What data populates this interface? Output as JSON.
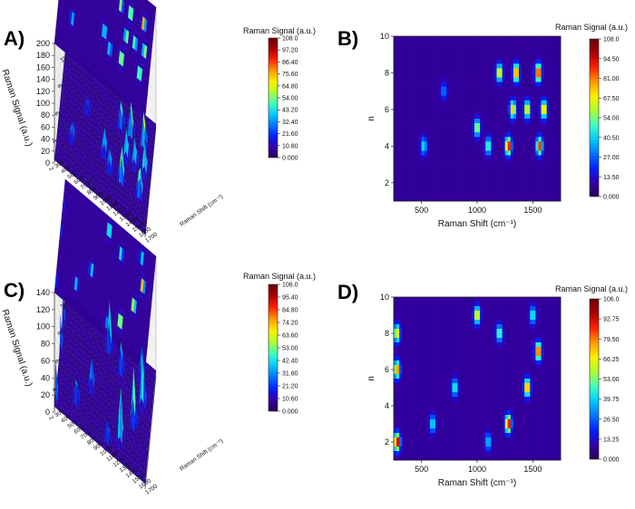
{
  "figure": {
    "palette": [
      "#2a0055",
      "#3300aa",
      "#0022ff",
      "#0077ff",
      "#00ccff",
      "#44ffbb",
      "#aaff33",
      "#ffee00",
      "#ff9900",
      "#ff2200",
      "#aa0000",
      "#6a0000"
    ]
  },
  "chart_data": [
    {
      "panel": "A)",
      "type": "heatmap",
      "view": "3d-surface",
      "zlabel": "Raman Signal (a.u.)",
      "xlabel": "Raman Shift (cm⁻¹)",
      "colorbar_title": "Raman Signal (a.u.)",
      "colorbar_ticks": [
        "108.0",
        "97.20",
        "86.40",
        "75.60",
        "64.80",
        "54.00",
        "43.20",
        "32.40",
        "21.60",
        "10.80",
        "0.000"
      ],
      "z_ticks": [
        "200",
        "180",
        "160",
        "140",
        "120",
        "100",
        "80",
        "60",
        "40",
        "20",
        "0"
      ],
      "x_ticks": [
        "300",
        "400",
        "500",
        "600",
        "700",
        "800",
        "900",
        "1000",
        "1100",
        "1200",
        "1300",
        "1400",
        "1500",
        "1600",
        "1700"
      ],
      "n_ticks": [
        "10",
        "8",
        "6",
        "4",
        "2"
      ],
      "zmax": 108,
      "x_range": [
        300,
        1700
      ],
      "n_range": [
        1,
        10
      ],
      "peaks": [
        {
          "x": 1280,
          "n": 4,
          "z": 95
        },
        {
          "x": 1350,
          "n": 8,
          "z": 90
        },
        {
          "x": 1550,
          "n": 8,
          "z": 100
        },
        {
          "x": 1560,
          "n": 4,
          "z": 85
        },
        {
          "x": 1450,
          "n": 6,
          "z": 70
        },
        {
          "x": 1320,
          "n": 6,
          "z": 75
        },
        {
          "x": 1000,
          "n": 5,
          "z": 60
        },
        {
          "x": 1200,
          "n": 8,
          "z": 70
        },
        {
          "x": 1100,
          "n": 4,
          "z": 50
        },
        {
          "x": 520,
          "n": 4,
          "z": 40
        },
        {
          "x": 700,
          "n": 7,
          "z": 25
        },
        {
          "x": 1600,
          "n": 6,
          "z": 80
        }
      ]
    },
    {
      "panel": "B)",
      "type": "heatmap",
      "xlabel": "Raman Shift (cm⁻¹)",
      "ylabel": "n",
      "colorbar_title": "Raman Signal (a.u.)",
      "colorbar_ticks": [
        "108.0",
        "94.50",
        "81.00",
        "67.50",
        "54.00",
        "40.50",
        "27.00",
        "13.50",
        "0.000"
      ],
      "x_ticks": [
        "500",
        "1000",
        "1500"
      ],
      "y_ticks": [
        "2",
        "4",
        "6",
        "8",
        "10"
      ],
      "x_range": [
        250,
        1750
      ],
      "y_range": [
        1,
        10
      ],
      "zmax": 108,
      "peaks": [
        {
          "x": 1280,
          "n": 4,
          "z": 95
        },
        {
          "x": 1350,
          "n": 8,
          "z": 90
        },
        {
          "x": 1550,
          "n": 8,
          "z": 100
        },
        {
          "x": 1560,
          "n": 4,
          "z": 85
        },
        {
          "x": 1450,
          "n": 6,
          "z": 70
        },
        {
          "x": 1320,
          "n": 6,
          "z": 75
        },
        {
          "x": 1000,
          "n": 5,
          "z": 60
        },
        {
          "x": 1200,
          "n": 8,
          "z": 70
        },
        {
          "x": 1100,
          "n": 4,
          "z": 50
        },
        {
          "x": 520,
          "n": 4,
          "z": 40
        },
        {
          "x": 700,
          "n": 7,
          "z": 25
        },
        {
          "x": 1600,
          "n": 6,
          "z": 80
        }
      ]
    },
    {
      "panel": "C)",
      "type": "heatmap",
      "view": "3d-surface",
      "zlabel": "Raman Signal (a.u.)",
      "xlabel": "Raman Shift (cm⁻¹)",
      "colorbar_title": "Raman Signal (a.u.)",
      "colorbar_ticks": [
        "106.0",
        "95.40",
        "84.80",
        "74.20",
        "63.60",
        "53.00",
        "42.40",
        "31.80",
        "21.20",
        "10.60",
        "0.000"
      ],
      "z_ticks": [
        "140",
        "120",
        "100",
        "80",
        "60",
        "40",
        "20",
        "0"
      ],
      "x_ticks": [
        "300",
        "400",
        "500",
        "600",
        "700",
        "800",
        "900",
        "1000",
        "1100",
        "1200",
        "1300",
        "1400",
        "1500",
        "1600",
        "1700"
      ],
      "n_ticks": [
        "10",
        "8",
        "6",
        "4",
        "2"
      ],
      "zmax": 106,
      "x_range": [
        300,
        1700
      ],
      "n_range": [
        1,
        10
      ],
      "peaks": [
        {
          "x": 280,
          "n": 2,
          "z": 100
        },
        {
          "x": 280,
          "n": 6,
          "z": 80
        },
        {
          "x": 280,
          "n": 8,
          "z": 70
        },
        {
          "x": 1000,
          "n": 9,
          "z": 70
        },
        {
          "x": 1280,
          "n": 3,
          "z": 95
        },
        {
          "x": 1450,
          "n": 5,
          "z": 85
        },
        {
          "x": 1550,
          "n": 7,
          "z": 95
        },
        {
          "x": 1200,
          "n": 8,
          "z": 50
        },
        {
          "x": 800,
          "n": 5,
          "z": 45
        },
        {
          "x": 600,
          "n": 3,
          "z": 40
        },
        {
          "x": 1100,
          "n": 2,
          "z": 35
        },
        {
          "x": 1500,
          "n": 9,
          "z": 45
        }
      ]
    },
    {
      "panel": "D)",
      "type": "heatmap",
      "xlabel": "Raman Shift (cm⁻¹)",
      "ylabel": "n",
      "colorbar_title": "Raman Signal (a.u.)",
      "colorbar_ticks": [
        "106.0",
        "92.75",
        "79.50",
        "66.25",
        "53.00",
        "39.75",
        "26.50",
        "13.25",
        "0.000"
      ],
      "x_ticks": [
        "500",
        "1000",
        "1500"
      ],
      "y_ticks": [
        "2",
        "4",
        "6",
        "8",
        "10"
      ],
      "x_range": [
        250,
        1750
      ],
      "y_range": [
        1,
        10
      ],
      "zmax": 106,
      "peaks": [
        {
          "x": 280,
          "n": 2,
          "z": 100
        },
        {
          "x": 280,
          "n": 6,
          "z": 80
        },
        {
          "x": 280,
          "n": 8,
          "z": 70
        },
        {
          "x": 1000,
          "n": 9,
          "z": 70
        },
        {
          "x": 1280,
          "n": 3,
          "z": 95
        },
        {
          "x": 1450,
          "n": 5,
          "z": 85
        },
        {
          "x": 1550,
          "n": 7,
          "z": 95
        },
        {
          "x": 1200,
          "n": 8,
          "z": 50
        },
        {
          "x": 800,
          "n": 5,
          "z": 45
        },
        {
          "x": 600,
          "n": 3,
          "z": 40
        },
        {
          "x": 1100,
          "n": 2,
          "z": 35
        },
        {
          "x": 1500,
          "n": 9,
          "z": 45
        }
      ]
    }
  ]
}
